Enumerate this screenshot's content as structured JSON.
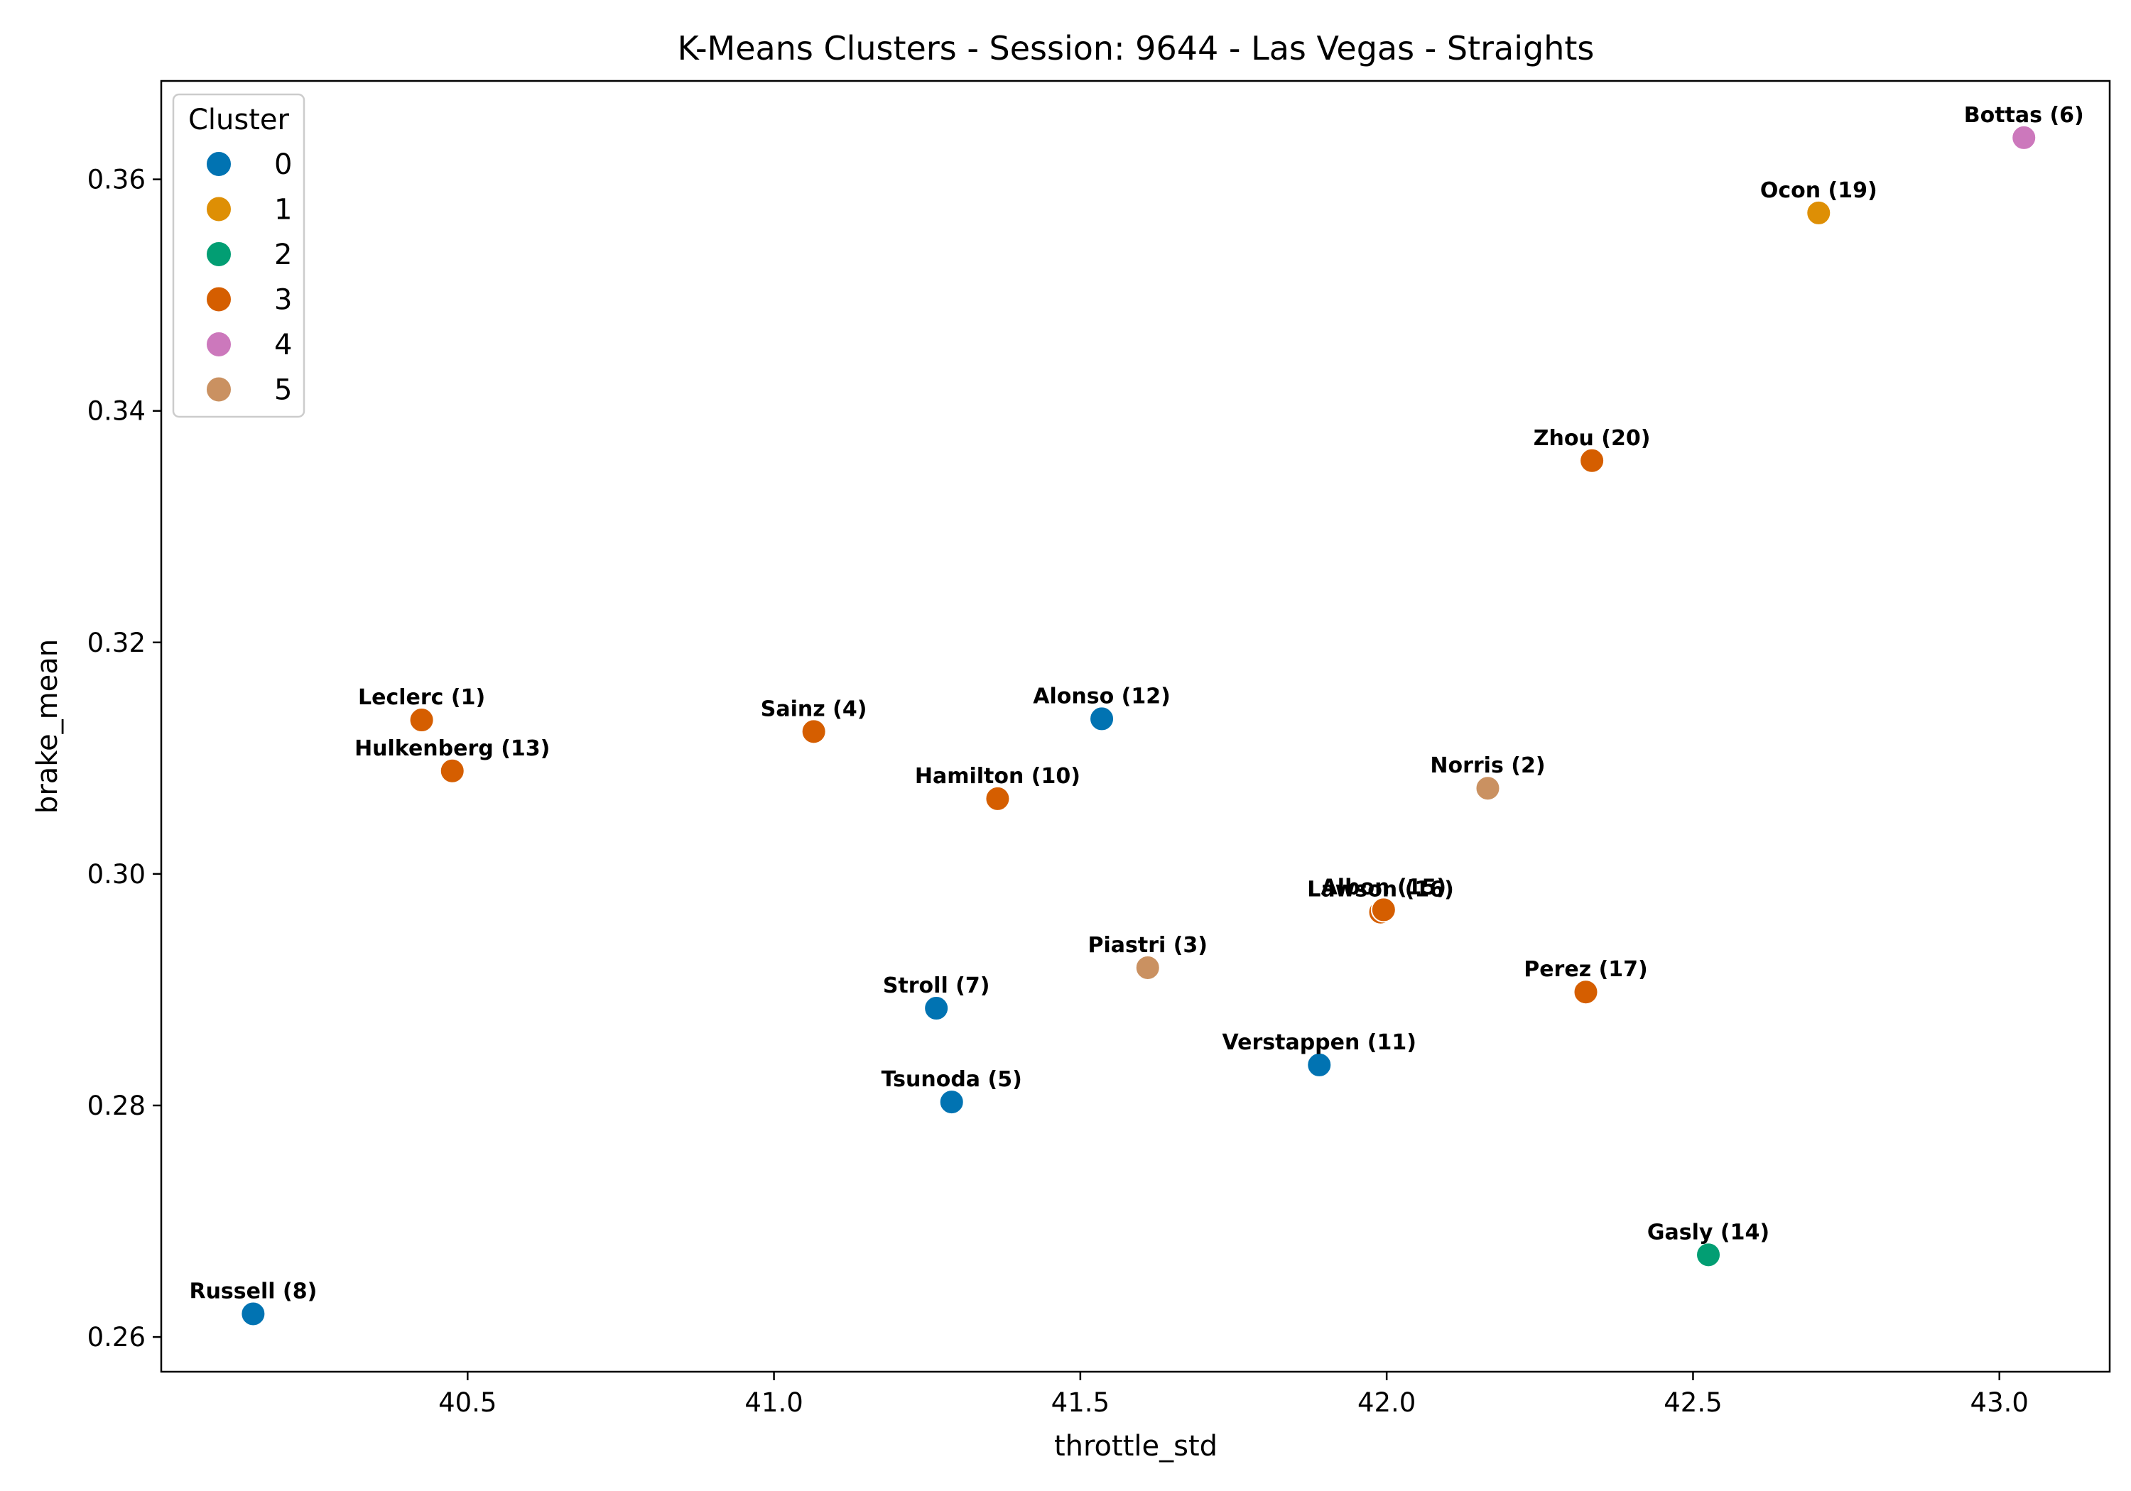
{
  "chart_data": {
    "type": "scatter",
    "title": "K-Means Clusters - Session: 9644 - Las Vegas - Straights",
    "xlabel": "throttle_std",
    "ylabel": "brake_mean",
    "xlim": [
      40.0,
      43.18
    ],
    "ylim": [
      0.257,
      0.3685
    ],
    "xticks": [
      40.5,
      41.0,
      41.5,
      42.0,
      42.5,
      43.0
    ],
    "xtick_labels": [
      "40.5",
      "41.0",
      "41.5",
      "42.0",
      "42.5",
      "43.0"
    ],
    "yticks": [
      0.26,
      0.28,
      0.3,
      0.32,
      0.34,
      0.36
    ],
    "ytick_labels": [
      "0.26",
      "0.28",
      "0.30",
      "0.32",
      "0.34",
      "0.36"
    ],
    "grid": false,
    "legend": {
      "title": "Cluster",
      "placement": "top-left",
      "entries": [
        {
          "label": "0",
          "color": "#0173b2"
        },
        {
          "label": "1",
          "color": "#de8f05"
        },
        {
          "label": "2",
          "color": "#029e73"
        },
        {
          "label": "3",
          "color": "#d55e00"
        },
        {
          "label": "4",
          "color": "#cc78bc"
        },
        {
          "label": "5",
          "color": "#ca9161"
        }
      ]
    },
    "points": [
      {
        "label": "Russell (8)",
        "x": 40.15,
        "y": 0.262,
        "cluster": 0
      },
      {
        "label": "Tsunoda (5)",
        "x": 41.29,
        "y": 0.2803,
        "cluster": 0
      },
      {
        "label": "Stroll (7)",
        "x": 41.265,
        "y": 0.2884,
        "cluster": 0
      },
      {
        "label": "Verstappen (11)",
        "x": 41.89,
        "y": 0.2835,
        "cluster": 0
      },
      {
        "label": "Alonso (12)",
        "x": 41.535,
        "y": 0.3134,
        "cluster": 0
      },
      {
        "label": "Ocon (19)",
        "x": 42.705,
        "y": 0.3571,
        "cluster": 1
      },
      {
        "label": "Gasly (14)",
        "x": 42.525,
        "y": 0.2671,
        "cluster": 2
      },
      {
        "label": "Leclerc (1)",
        "x": 40.425,
        "y": 0.3133,
        "cluster": 3
      },
      {
        "label": "Hulkenberg (13)",
        "x": 40.475,
        "y": 0.3089,
        "cluster": 3
      },
      {
        "label": "Sainz (4)",
        "x": 41.065,
        "y": 0.3123,
        "cluster": 3
      },
      {
        "label": "Hamilton (10)",
        "x": 41.365,
        "y": 0.3065,
        "cluster": 3
      },
      {
        "label": "Lawson (16)",
        "x": 41.99,
        "y": 0.2967,
        "cluster": 3
      },
      {
        "label": "Norris (2)",
        "x": 42.165,
        "y": 0.3074,
        "cluster": 5
      },
      {
        "label": "Albon (15)",
        "x": 41.995,
        "y": 0.2969,
        "cluster": 3
      },
      {
        "label": "Zhou (20)",
        "x": 42.335,
        "y": 0.3357,
        "cluster": 3
      },
      {
        "label": "Perez (17)",
        "x": 42.325,
        "y": 0.2898,
        "cluster": 3
      },
      {
        "label": "Piastri (3)",
        "x": 41.61,
        "y": 0.2919,
        "cluster": 5
      },
      {
        "label": "Bottas (6)",
        "x": 43.04,
        "y": 0.3636,
        "cluster": 4
      }
    ]
  }
}
